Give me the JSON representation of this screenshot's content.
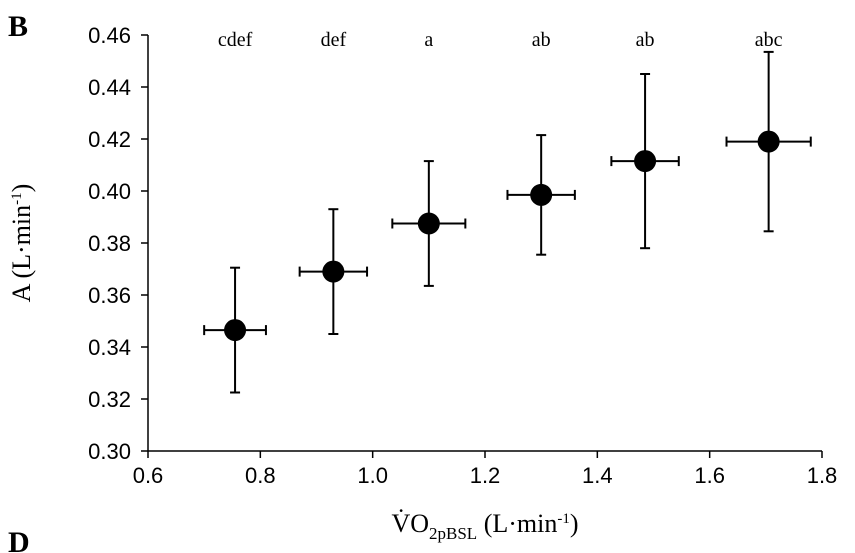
{
  "panel_label": "B",
  "next_panel_label": "D",
  "chart_data": {
    "type": "scatter",
    "xlabel": {
      "main": "V̇O",
      "sub": "2pBSL",
      "unit_pre": " (L·min",
      "sup": "-1",
      "unit_post": ")"
    },
    "ylabel": {
      "main": "A (L·min",
      "sup": "-1",
      "post": ")"
    },
    "xlim": [
      0.6,
      1.8
    ],
    "ylim": [
      0.3,
      0.46
    ],
    "x_ticks": [
      "0.6",
      "0.8",
      "1.0",
      "1.2",
      "1.4",
      "1.6",
      "1.8"
    ],
    "y_ticks": [
      "0.30",
      "0.32",
      "0.34",
      "0.36",
      "0.38",
      "0.40",
      "0.42",
      "0.44",
      "0.46"
    ],
    "grid": false,
    "points": [
      {
        "x": 0.755,
        "y": 0.3465,
        "x_err": 0.055,
        "y_err": 0.024,
        "label": "cdef"
      },
      {
        "x": 0.93,
        "y": 0.369,
        "x_err": 0.06,
        "y_err": 0.024,
        "label": "def"
      },
      {
        "x": 1.1,
        "y": 0.3875,
        "x_err": 0.065,
        "y_err": 0.024,
        "label": "a"
      },
      {
        "x": 1.3,
        "y": 0.3985,
        "x_err": 0.06,
        "y_err": 0.023,
        "label": "ab"
      },
      {
        "x": 1.485,
        "y": 0.4115,
        "x_err": 0.06,
        "y_err": 0.0335,
        "label": "ab"
      },
      {
        "x": 1.705,
        "y": 0.419,
        "x_err": 0.075,
        "y_err": 0.0345,
        "label": "abc"
      }
    ],
    "marker_color": "#000000"
  }
}
